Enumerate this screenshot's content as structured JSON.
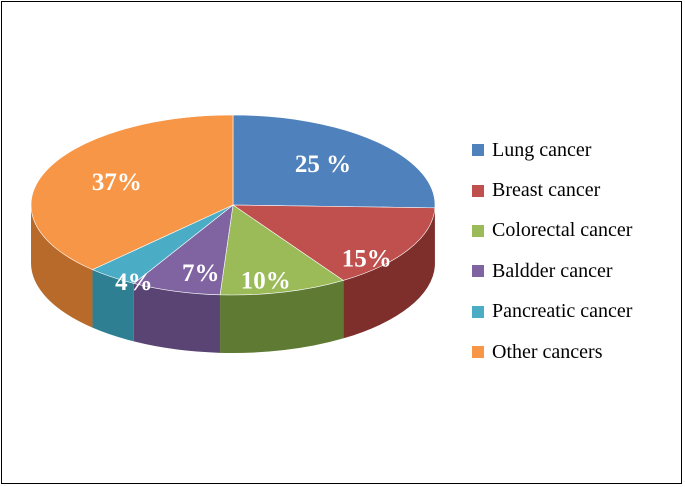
{
  "chart_data": {
    "type": "pie",
    "categories": [
      "Lung cancer",
      "Breast cancer",
      "Colorectal cancer",
      "Baldder cancer",
      "Pancreatic cancer",
      "Other cancers"
    ],
    "values": [
      25,
      15,
      10,
      7,
      4,
      37
    ],
    "data_labels": [
      "25 %",
      "15%",
      "10%",
      "7%",
      "4%",
      "37%"
    ],
    "colors": [
      "#4F81BD",
      "#C0504D",
      "#9BBB59",
      "#8064A2",
      "#4BACC6",
      "#F79646"
    ],
    "side_colors": [
      "#3A6494",
      "#7E2E2B",
      "#5E7A33",
      "#5A4474",
      "#2E7F92",
      "#B86A2A"
    ],
    "legend_position": "right",
    "style": "3d"
  }
}
